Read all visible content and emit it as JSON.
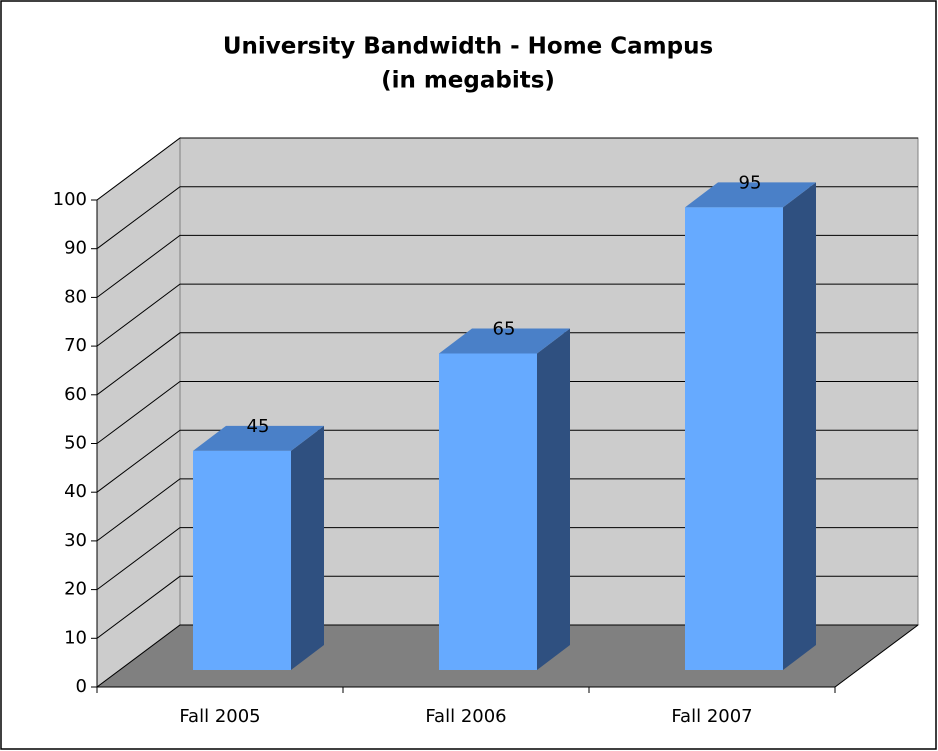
{
  "chart_data": {
    "type": "bar3d",
    "title": [
      "University Bandwidth - Home Campus",
      "(in megabits)"
    ],
    "categories": [
      "Fall 2005",
      "Fall 2006",
      "Fall 2007"
    ],
    "values": [
      45,
      65,
      95
    ],
    "color": "#66aaff",
    "ylim": [
      0,
      100
    ],
    "yticks": [
      0,
      10,
      20,
      30,
      40,
      50,
      60,
      70,
      80,
      90,
      100
    ],
    "grid": true
  }
}
